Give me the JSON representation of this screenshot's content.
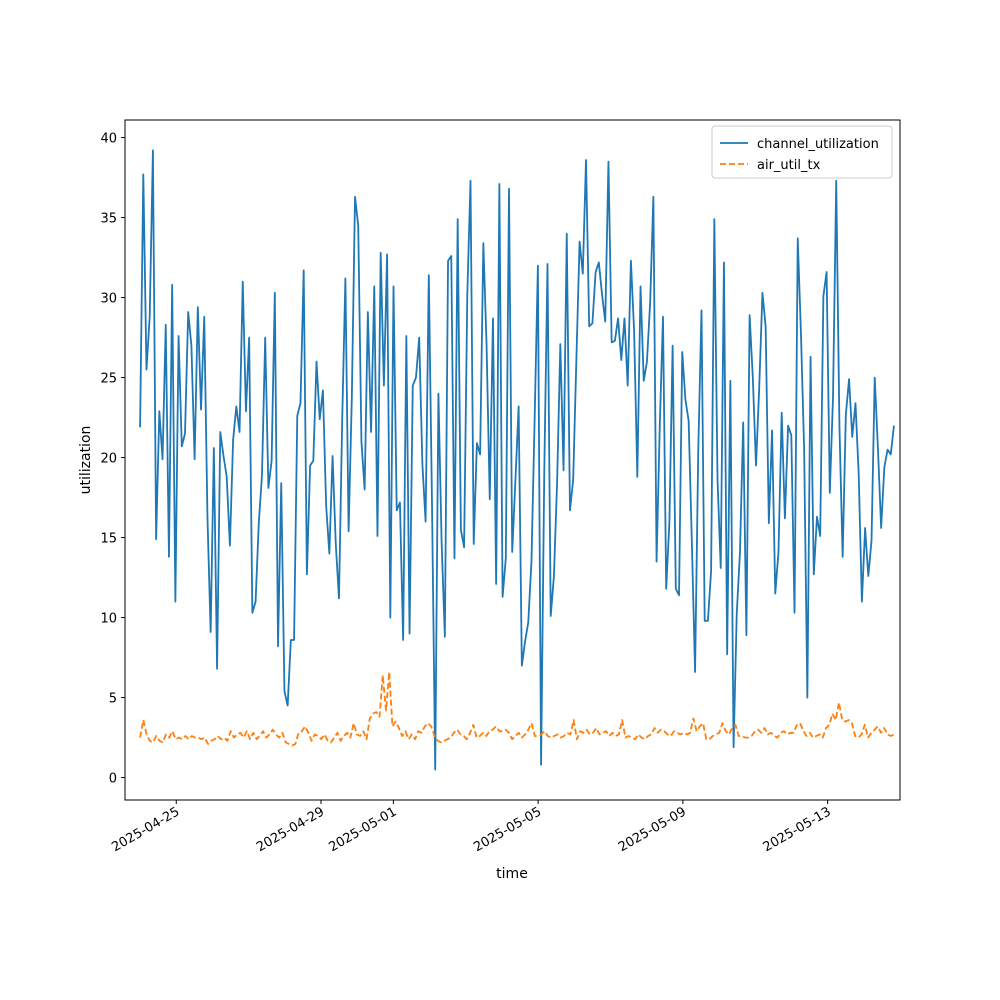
{
  "chart_data": {
    "type": "line",
    "title": "",
    "xlabel": "time",
    "ylabel": "utilization",
    "x_tick_labels": [
      "2025-04-25",
      "2025-04-29",
      "2025-05-01",
      "2025-05-05",
      "2025-05-09",
      "2025-05-13"
    ],
    "x_tick_dates": [
      "2025-04-25",
      "2025-04-29",
      "2025-05-01",
      "2025-05-05",
      "2025-05-09",
      "2025-05-13"
    ],
    "xlim": [
      "2025-04-23T14:00",
      "2025-05-15T00:00"
    ],
    "y_ticks": [
      0,
      5,
      10,
      15,
      20,
      25,
      30,
      35,
      40
    ],
    "y_tick_labels": [
      "0",
      "5",
      "10",
      "15",
      "20",
      "25",
      "30",
      "35",
      "40"
    ],
    "ylim": [
      -1.4,
      41.1
    ],
    "grid": false,
    "legend_position": "top-right",
    "x_start": "2025-04-24T00:00",
    "x_end": "2025-05-14T20:00",
    "series": [
      {
        "name": "channel_utilization",
        "color": "#1f77b4",
        "style": "solid",
        "values": [
          21.9,
          37.7,
          25.5,
          28.8,
          39.2,
          14.9,
          22.9,
          19.9,
          28.3,
          13.8,
          30.8,
          11.0,
          27.6,
          20.7,
          21.5,
          29.1,
          27.0,
          19.9,
          29.4,
          23.0,
          28.8,
          16.3,
          9.1,
          20.6,
          6.8,
          21.6,
          20.1,
          18.8,
          14.5,
          21.1,
          23.2,
          21.6,
          31.0,
          22.9,
          27.5,
          10.3,
          11.0,
          15.9,
          18.9,
          27.5,
          18.1,
          19.8,
          30.3,
          8.2,
          18.4,
          5.4,
          4.5,
          8.6,
          8.6,
          22.6,
          23.4,
          31.7,
          12.7,
          19.5,
          19.8,
          26.0,
          22.4,
          24.2,
          17.0,
          14.0,
          20.1,
          14.6,
          11.2,
          22.3,
          31.2,
          15.4,
          23.7,
          36.3,
          34.5,
          21.0,
          18.0,
          29.1,
          21.6,
          30.7,
          15.1,
          32.8,
          24.5,
          32.7,
          10.0,
          30.7,
          16.7,
          17.2,
          8.6,
          27.6,
          9.0,
          24.5,
          25.0,
          27.5,
          19.6,
          16.0,
          31.4,
          17.1,
          0.5,
          24.0,
          14.7,
          8.8,
          32.3,
          32.6,
          13.7,
          34.9,
          15.5,
          14.4,
          30.2,
          37.3,
          14.6,
          20.9,
          20.2,
          33.4,
          27.1,
          17.4,
          28.7,
          12.1,
          37.1,
          11.3,
          13.7,
          36.8,
          14.1,
          18.6,
          23.2,
          7.0,
          8.5,
          9.7,
          13.5,
          22.5,
          32.0,
          0.8,
          19.2,
          32.1,
          10.1,
          12.6,
          18.5,
          27.1,
          19.2,
          34.0,
          16.7,
          18.6,
          26.1,
          33.5,
          31.5,
          38.6,
          28.2,
          28.4,
          31.6,
          32.2,
          30.2,
          28.5,
          38.5,
          27.2,
          27.3,
          28.7,
          26.1,
          28.7,
          24.5,
          32.3,
          27.9,
          18.8,
          30.7,
          24.8,
          26.0,
          29.7,
          36.3,
          13.5,
          22.0,
          28.8,
          11.8,
          16.0,
          27.0,
          11.8,
          11.4,
          26.6,
          23.6,
          22.3,
          14.7,
          6.6,
          20.5,
          29.2,
          9.8,
          9.8,
          12.9,
          34.9,
          18.6,
          13.1,
          32.2,
          7.7,
          24.8,
          1.9,
          10.3,
          14.1,
          22.2,
          8.9,
          28.9,
          25.0,
          19.5,
          24.4,
          30.3,
          28.2,
          15.9,
          21.7,
          11.5,
          14.1,
          22.8,
          16.2,
          22.0,
          21.4,
          10.3,
          33.7,
          27.8,
          20.5,
          5.0,
          26.3,
          12.7,
          16.3,
          15.1,
          30.1,
          31.6,
          17.8,
          23.8,
          37.3,
          22.0,
          13.8,
          22.7,
          24.9,
          21.3,
          23.4,
          19.0,
          11.0,
          15.6,
          12.6,
          14.8,
          25.0,
          20.6,
          15.6,
          19.4,
          20.5,
          20.2,
          22.0
        ]
      },
      {
        "name": "air_util_tx",
        "color": "#ff7f0e",
        "style": "dashed",
        "values": [
          2.5,
          3.6,
          2.7,
          2.3,
          2.2,
          2.6,
          2.3,
          2.2,
          2.7,
          2.5,
          2.9,
          2.4,
          2.5,
          2.4,
          2.6,
          2.4,
          2.6,
          2.5,
          2.5,
          2.4,
          2.5,
          2.1,
          2.3,
          2.4,
          2.6,
          2.4,
          2.5,
          2.3,
          2.9,
          2.5,
          2.7,
          2.8,
          2.5,
          2.9,
          2.4,
          2.8,
          2.4,
          2.6,
          2.9,
          2.5,
          2.7,
          3.0,
          2.7,
          2.5,
          2.8,
          2.2,
          2.1,
          2.0,
          2.1,
          2.8,
          2.9,
          3.2,
          2.8,
          2.3,
          2.7,
          2.6,
          2.4,
          2.7,
          2.3,
          2.2,
          2.5,
          2.8,
          2.3,
          2.6,
          2.8,
          2.5,
          3.4,
          2.7,
          2.6,
          2.9,
          2.4,
          3.7,
          4.0,
          4.1,
          3.8,
          6.4,
          4.2,
          6.6,
          3.2,
          3.5,
          3.1,
          2.6,
          2.9,
          2.4,
          2.7,
          2.4,
          2.9,
          2.8,
          3.2,
          3.4,
          3.2,
          2.6,
          2.3,
          2.2,
          2.3,
          2.4,
          2.5,
          2.8,
          3.0,
          2.7,
          2.6,
          2.4,
          2.8,
          3.3,
          2.5,
          2.6,
          2.8,
          2.6,
          2.9,
          3.0,
          3.2,
          2.9,
          2.9,
          3.0,
          2.8,
          2.4,
          2.6,
          2.8,
          2.5,
          2.7,
          3.0,
          3.4,
          2.6,
          2.6,
          2.7,
          2.9,
          2.6,
          2.5,
          2.6,
          2.7,
          2.5,
          2.6,
          2.8,
          2.7,
          3.6,
          2.4,
          2.9,
          2.8,
          3.0,
          2.7,
          2.8,
          3.1,
          2.7,
          2.8,
          2.9,
          2.6,
          2.8,
          2.6,
          2.7,
          3.6,
          2.5,
          2.6,
          2.5,
          2.4,
          2.7,
          2.5,
          2.4,
          2.6,
          2.7,
          3.1,
          2.8,
          3.0,
          2.9,
          2.7,
          2.6,
          2.9,
          2.8,
          2.7,
          2.8,
          2.7,
          2.8,
          3.7,
          2.9,
          3.2,
          3.4,
          2.4,
          2.4,
          2.6,
          2.7,
          2.8,
          3.4,
          2.9,
          2.7,
          3.1,
          3.3,
          2.6,
          2.6,
          2.5,
          2.5,
          2.6,
          2.9,
          3.0,
          2.8,
          3.1,
          2.7,
          2.8,
          2.6,
          2.5,
          2.8,
          2.9,
          2.7,
          2.8,
          2.8,
          3.3,
          3.4,
          2.9,
          2.6,
          2.8,
          2.5,
          2.6,
          2.7,
          2.5,
          3.1,
          3.3,
          4.0,
          3.6,
          4.7,
          3.6,
          3.5,
          3.6,
          3.4,
          2.6,
          2.5,
          2.7,
          3.3,
          2.5,
          2.8,
          3.0,
          3.2,
          2.8,
          3.1,
          2.7,
          2.6,
          2.7
        ]
      }
    ]
  }
}
